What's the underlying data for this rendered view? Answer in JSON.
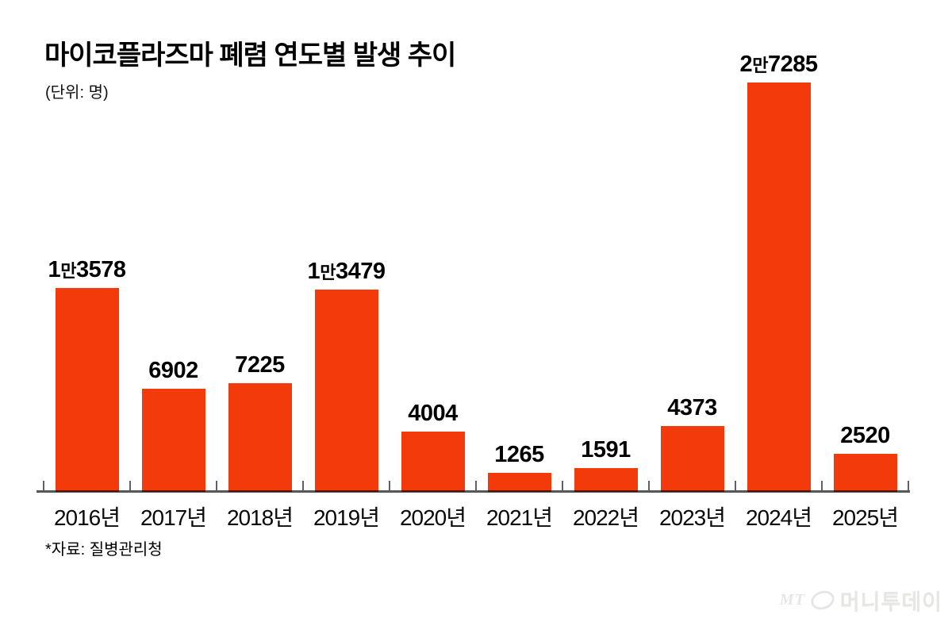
{
  "title": "마이코플라즈마 폐렴 연도별 발생 추이",
  "source_note": "*자료: 질병관리청",
  "watermark": {
    "prefix": "MT",
    "symbol": "ellipse-logo",
    "name": "머니투데이"
  },
  "colors": {
    "bar": "#f23a0a",
    "axis": "rgba(0,0,0,0.66)",
    "text": "#000000",
    "watermark": "#e6e6e3"
  },
  "chart_data": {
    "type": "bar",
    "title": "마이코플라즈마 폐렴 연도별 발생 추이",
    "unit_label": "(단위: 명)",
    "categories": [
      "2016년",
      "2017년",
      "2018년",
      "2019년",
      "2020년",
      "2021년",
      "2022년",
      "2023년",
      "2024년",
      "2025년"
    ],
    "values": [
      13578,
      6902,
      7225,
      13479,
      4004,
      1265,
      1591,
      4373,
      27285,
      2520
    ],
    "value_labels": [
      "1만3578",
      "6902",
      "7225",
      "1만3479",
      "4004",
      "1265",
      "1591",
      "4373",
      "2만7285",
      "2520"
    ],
    "xlabel": "",
    "ylabel": "명",
    "ylim": [
      0,
      32800
    ],
    "grid": false,
    "legend": false,
    "bar_color": "#f23a0a"
  }
}
